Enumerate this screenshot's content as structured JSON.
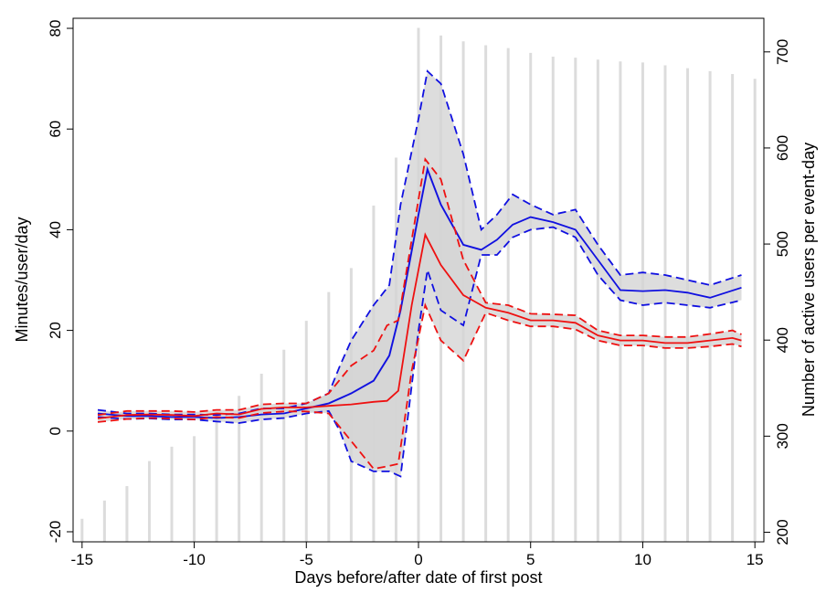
{
  "chart_data": {
    "type": "line",
    "title": "",
    "xlabel": "Days before/after date of first post",
    "ylabel": "Minutes/user/day",
    "y2label": "Number of active users per event-day",
    "xlim": [
      -15.4,
      15.4
    ],
    "ylim": [
      -22,
      82
    ],
    "y2lim": [
      190,
      735
    ],
    "x_ticks": [
      -15,
      -10,
      -5,
      0,
      5,
      10,
      15
    ],
    "y_ticks": [
      -20,
      0,
      20,
      40,
      60,
      80
    ],
    "y2_ticks": [
      200,
      300,
      400,
      500,
      600,
      700
    ],
    "grid": false,
    "legend": "none",
    "colors": {
      "blue": "#1010e0",
      "red": "#ee1111",
      "band_fill": "#d4d4d4",
      "lightblue": "#9a9ad8",
      "bar": "#dcdcdc"
    },
    "active_users": {
      "x": [
        -15,
        -14,
        -13,
        -12,
        -11,
        -10,
        -9,
        -8,
        -7,
        -6,
        -5,
        -4,
        -3,
        -2,
        -1,
        0,
        1,
        2,
        3,
        4,
        5,
        6,
        7,
        8,
        9,
        10,
        11,
        12,
        13,
        14,
        15
      ],
      "values": [
        214,
        233,
        248,
        274,
        289,
        300,
        318,
        342,
        365,
        390,
        420,
        450,
        475,
        540,
        590,
        725,
        717,
        711,
        707,
        704,
        699,
        695,
        694,
        692,
        690,
        689,
        686,
        683,
        680,
        677,
        672
      ]
    },
    "series": [
      {
        "color": "blue",
        "x": [
          -14.3,
          -13,
          -12,
          -11,
          -10,
          -9,
          -8,
          -7,
          -6,
          -5,
          -4,
          -3.5,
          -3,
          -2,
          -1.3,
          -0.8,
          0,
          0.4,
          1,
          2,
          2.8,
          3.5,
          4.2,
          5,
          6,
          7,
          8,
          9,
          10,
          11,
          12,
          13,
          14.4
        ],
        "values": [
          3.5,
          3,
          3,
          2.8,
          2.8,
          2.6,
          2.8,
          3.3,
          3.5,
          4.5,
          5.5,
          6.5,
          7.5,
          10,
          15,
          24,
          43,
          52,
          45,
          37,
          36,
          38,
          41,
          42.5,
          41.5,
          40,
          34,
          28,
          27.8,
          28,
          27.5,
          26.5,
          28.5
        ],
        "upper": [
          4.2,
          3.5,
          3.5,
          3.3,
          3.3,
          3.2,
          3.5,
          4.5,
          4.5,
          5.5,
          7.5,
          13,
          18,
          25,
          29,
          45,
          62,
          71.5,
          69,
          55,
          40,
          43,
          47,
          45,
          43,
          44,
          37,
          31,
          31.5,
          31,
          30,
          29,
          31
        ],
        "lower": [
          2.8,
          2.4,
          2.5,
          2.3,
          2.3,
          1.9,
          1.6,
          2.3,
          2.6,
          3.5,
          4,
          0,
          -6,
          -8,
          -8,
          -9,
          20,
          32,
          24,
          21,
          35,
          35,
          38.5,
          40,
          40.5,
          38.5,
          31,
          26,
          25,
          25.5,
          25,
          24.5,
          26
        ]
      },
      {
        "color": "red",
        "x": [
          -14.3,
          -13,
          -12,
          -11,
          -10,
          -9,
          -8,
          -7,
          -6,
          -5,
          -4,
          -3,
          -2,
          -1.4,
          -0.9,
          -0.3,
          0.3,
          1,
          2,
          3,
          4,
          5,
          6,
          7,
          8,
          9,
          10,
          11,
          12,
          13,
          14,
          14.4
        ],
        "values": [
          2.5,
          3.2,
          3.3,
          3.2,
          3,
          3.5,
          3.3,
          4.4,
          4.7,
          4.7,
          5,
          5.3,
          5.8,
          6,
          8,
          25,
          39,
          33,
          27,
          24.5,
          23.5,
          22,
          22,
          21.5,
          19,
          18,
          18,
          17.5,
          17.5,
          18,
          18.5,
          18
        ],
        "upper": [
          3.2,
          4,
          4,
          4,
          3.8,
          4.2,
          4.2,
          5.3,
          5.5,
          5.5,
          7.5,
          13,
          16,
          21,
          22,
          38,
          54,
          50,
          34,
          25.5,
          25,
          23.3,
          23.2,
          23,
          20,
          19,
          19,
          18.7,
          18.7,
          19.3,
          20,
          19.2
        ],
        "lower": [
          1.8,
          2.4,
          2.6,
          2.5,
          2.3,
          2.8,
          2.6,
          3.6,
          3.9,
          3.9,
          3.5,
          -2,
          -7.5,
          -7,
          -6.5,
          12,
          25,
          18,
          14,
          23.5,
          22,
          20.8,
          20.8,
          20.2,
          18,
          17,
          17,
          16.5,
          16.5,
          16.8,
          17.3,
          16.8
        ]
      },
      {
        "color": "lightblue",
        "x": [
          -5,
          -4,
          -3,
          -2,
          -1.3,
          -0.8,
          0,
          0.4,
          1,
          2,
          2.8
        ],
        "values": [
          4.5,
          5.5,
          7.5,
          10,
          15,
          24,
          43,
          52,
          45,
          37,
          36
        ]
      }
    ]
  }
}
